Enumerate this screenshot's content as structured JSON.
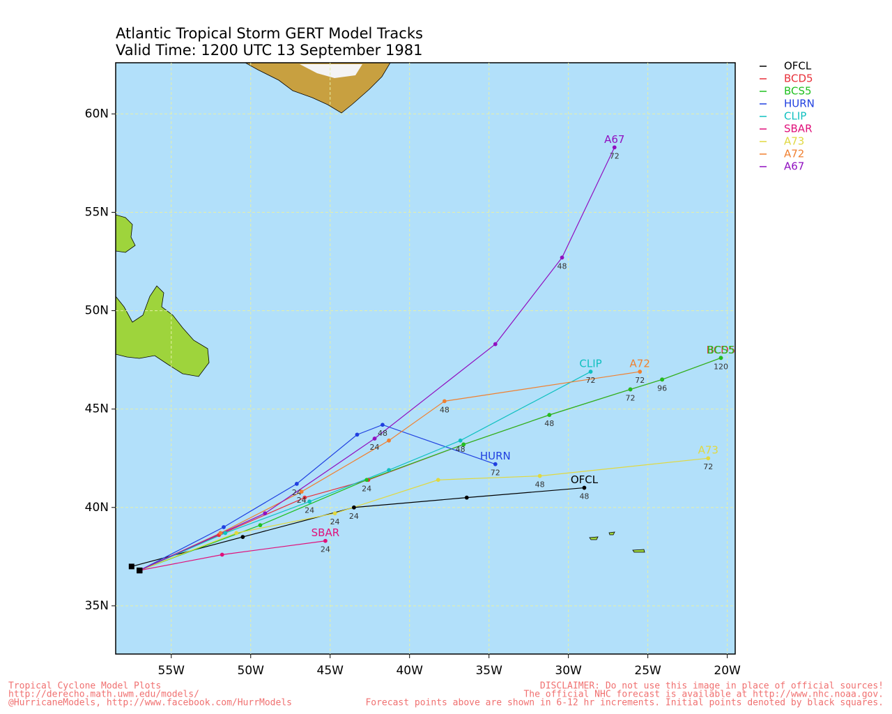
{
  "chart_data": {
    "type": "track-map",
    "title": "Atlantic Tropical Storm GERT Model Tracks",
    "subtitle": "Valid Time: 1200 UTC 13 September 1981",
    "xlim": [
      -58.5,
      -19.5
    ],
    "ylim": [
      32.55,
      62.6
    ],
    "xticks": [
      {
        "value": -55,
        "label": "55W"
      },
      {
        "value": -50,
        "label": "50W"
      },
      {
        "value": -45,
        "label": "45W"
      },
      {
        "value": -40,
        "label": "40W"
      },
      {
        "value": -35,
        "label": "35W"
      },
      {
        "value": -30,
        "label": "30W"
      },
      {
        "value": -25,
        "label": "25W"
      },
      {
        "value": -20,
        "label": "20W"
      }
    ],
    "yticks": [
      {
        "value": 35,
        "label": "35N"
      },
      {
        "value": 40,
        "label": "40N"
      },
      {
        "value": 45,
        "label": "45N"
      },
      {
        "value": 50,
        "label": "50N"
      },
      {
        "value": 55,
        "label": "55N"
      },
      {
        "value": 60,
        "label": "60N"
      }
    ],
    "grid": true,
    "legend": "right",
    "series": [
      {
        "name": "OFCL",
        "color": "#000000",
        "x": [
          -57.5,
          -50.5,
          -43.5,
          -36.4,
          -29.0
        ],
        "y": [
          37.0,
          38.5,
          40.0,
          40.5,
          41.0
        ],
        "labels": [
          null,
          null,
          24,
          null,
          48
        ]
      },
      {
        "name": "BCD5",
        "color": "#e8303a",
        "x": [
          -57.0,
          -52.0,
          -46.6,
          -42.6,
          -36.6,
          -31.2,
          -26.1,
          -24.1,
          -20.4
        ],
        "y": [
          36.8,
          38.6,
          40.5,
          41.4,
          43.2,
          44.7,
          46.0,
          46.5,
          47.6
        ],
        "labels": [
          null,
          null,
          null,
          null,
          null,
          null,
          null,
          null,
          null
        ]
      },
      {
        "name": "BCS5",
        "color": "#20c020",
        "x": [
          -57.0,
          -49.4,
          -42.7,
          -36.6,
          -31.2,
          -26.1,
          -24.1,
          -20.4
        ],
        "y": [
          36.8,
          39.1,
          41.4,
          43.2,
          44.7,
          46.0,
          46.5,
          47.6
        ],
        "labels": [
          null,
          null,
          24,
          null,
          48,
          72,
          96,
          120
        ]
      },
      {
        "name": "HURN",
        "color": "#2040e0",
        "x": [
          -57.0,
          -51.7,
          -47.1,
          -43.3,
          -41.7,
          -34.6
        ],
        "y": [
          36.8,
          39.0,
          41.2,
          43.7,
          44.2,
          42.2
        ],
        "labels": [
          null,
          null,
          24,
          null,
          48,
          72
        ]
      },
      {
        "name": "CLIP",
        "color": "#10c0c0",
        "x": [
          -57.0,
          -51.6,
          -46.3,
          -41.3,
          -36.8,
          -28.6
        ],
        "y": [
          36.8,
          38.7,
          40.3,
          41.9,
          43.4,
          46.9
        ],
        "labels": [
          null,
          null,
          24,
          null,
          48,
          72
        ]
      },
      {
        "name": "SBAR",
        "color": "#e0107a",
        "x": [
          -57.0,
          -51.8,
          -45.3
        ],
        "y": [
          36.8,
          37.6,
          38.3
        ],
        "labels": [
          null,
          null,
          24
        ]
      },
      {
        "name": "A73",
        "color": "#e0d840",
        "x": [
          -57.0,
          -50.9,
          -44.7,
          -38.2,
          -31.8,
          -21.2
        ],
        "y": [
          36.8,
          38.7,
          39.7,
          41.4,
          41.6,
          42.5
        ],
        "labels": [
          null,
          null,
          24,
          null,
          48,
          72
        ]
      },
      {
        "name": "A72",
        "color": "#f08030",
        "x": [
          -57.0,
          -51.9,
          -46.8,
          -41.3,
          -37.8,
          -25.5
        ],
        "y": [
          36.8,
          38.7,
          40.8,
          43.4,
          45.4,
          46.9
        ],
        "labels": [
          null,
          null,
          24,
          null,
          48,
          72
        ]
      },
      {
        "name": "A67",
        "color": "#9010c0",
        "x": [
          -57.0,
          -49.1,
          -42.2,
          -34.6,
          -30.4,
          -27.1
        ],
        "y": [
          36.8,
          39.7,
          43.5,
          48.3,
          52.7,
          58.3
        ],
        "labels": [
          null,
          null,
          24,
          null,
          48,
          72
        ]
      }
    ],
    "footer": {
      "left": [
        "Tropical Cyclone Model Plots",
        "http://derecho.math.uwm.edu/models/",
        "@HurricaneModels, http://www.facebook.com/HurrModels"
      ],
      "right": [
        "DISCLAIMER: Do not use this image in place of official sources!",
        "The official NHC forecast is available at http://www.nhc.noaa.gov.",
        "Forecast points above are shown in 6-12 hr increments. Initial points denoted by black squares."
      ]
    }
  }
}
